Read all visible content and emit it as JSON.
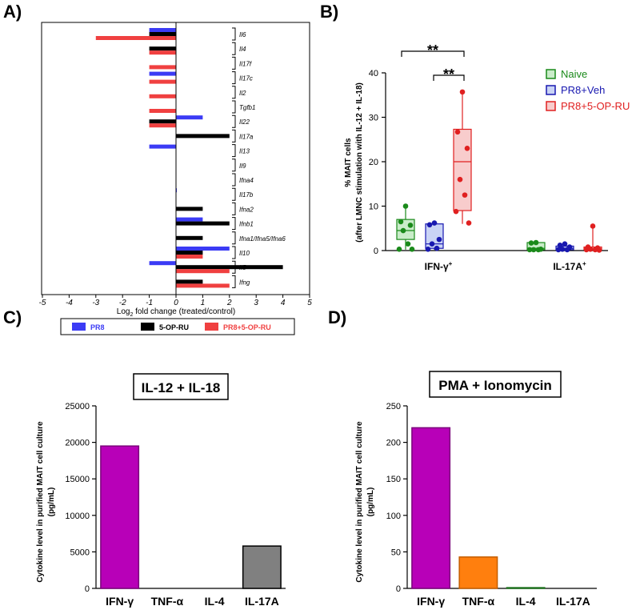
{
  "panels": {
    "a": "A)",
    "b": "B)",
    "c": "C)",
    "d": "D)"
  },
  "colors": {
    "pr8": "#3b3bf5",
    "op": "#000000",
    "pr8op": "#f04040",
    "naive": "#1a8a1a",
    "veh": "#1818b0",
    "combo": "#e02020",
    "magenta": "#b800b8",
    "orange": "#ff7f0e",
    "gray": "#808080"
  },
  "chart_data": [
    {
      "id": "A",
      "type": "bar",
      "orientation": "horizontal",
      "xlabel_prefix": "Log",
      "xlabel_sub": "2",
      "xlabel_suffix": " fold change (treated/control)",
      "xlim": [
        -5,
        5
      ],
      "xticks": [
        "-5",
        "-4",
        "-3",
        "-2",
        "-1",
        "0",
        "1",
        "2",
        "3",
        "4",
        "5"
      ],
      "series_names": [
        "PR8",
        "5-OP-RU",
        "PR8+5-OP-RU"
      ],
      "genes": [
        "Il6",
        "Il4",
        "Il17f",
        "Il17c",
        "Il2",
        "Tgfb1",
        "Il22",
        "Il17a",
        "Il13",
        "Il9",
        "Ifna4",
        "Il17b",
        "Ifna2",
        "Ifnb1",
        "Ifna1/Ifna5/Ifna6",
        "Il10",
        "Il5",
        "Ifng"
      ],
      "rows": [
        {
          "gene": "Il6",
          "values": [
            -1,
            -1,
            -3
          ]
        },
        {
          "gene": "Il4",
          "values": [
            0,
            -1,
            -1
          ]
        },
        {
          "gene": "Il17f",
          "values": [
            0,
            0,
            -1
          ]
        },
        {
          "gene": "Il17c",
          "values": [
            -1,
            0,
            -1
          ]
        },
        {
          "gene": "Il2",
          "values": [
            0,
            0,
            -1
          ]
        },
        {
          "gene": "Tgfb1",
          "values": [
            0,
            0,
            -1
          ]
        },
        {
          "gene": "Il22",
          "values": [
            1,
            -1,
            -1
          ]
        },
        {
          "gene": "Il17a",
          "values": [
            0,
            2,
            0
          ]
        },
        {
          "gene": "Il13",
          "values": [
            -1,
            0,
            0
          ]
        },
        {
          "gene": "Il9",
          "values": [
            0,
            0,
            0
          ]
        },
        {
          "gene": "Ifna4",
          "values": [
            0,
            0,
            0
          ]
        },
        {
          "gene": "Il17b",
          "values": [
            0.02,
            0,
            0
          ]
        },
        {
          "gene": "Ifna2",
          "values": [
            0,
            1,
            0
          ]
        },
        {
          "gene": "Ifnb1",
          "values": [
            1,
            2,
            0
          ]
        },
        {
          "gene": "Ifna1/Ifna5/Ifna6",
          "values": [
            0,
            1,
            0
          ]
        },
        {
          "gene": "Il10",
          "values": [
            2,
            1,
            1
          ]
        },
        {
          "gene": "Il5",
          "values": [
            -1,
            4,
            2
          ]
        },
        {
          "gene": "Ifng",
          "values": [
            0,
            1,
            2
          ]
        }
      ]
    },
    {
      "id": "B",
      "type": "scatter",
      "ylabel_1": "% MAIT cells",
      "ylabel_2": "(after LMNC stimulation with IL-12 + IL-18)",
      "ylim": [
        0,
        40
      ],
      "yticks": [
        "0",
        "10",
        "20",
        "30",
        "40"
      ],
      "groups": [
        {
          "label": "IFN-γ",
          "sup": "+"
        },
        {
          "label": "IL-17A",
          "sup": "+"
        }
      ],
      "legend": [
        "Naive",
        "PR8+Veh",
        "PR8+5-OP-RU"
      ],
      "significance": [
        "**",
        "**"
      ],
      "series": [
        {
          "name": "Naive",
          "group": 0,
          "points": [
            10,
            6.5,
            5.7,
            4.5,
            1.5,
            0.3,
            0.3
          ],
          "box": [
            0.2,
            2.5,
            4.5,
            7,
            10
          ]
        },
        {
          "name": "PR8+Veh",
          "group": 0,
          "points": [
            6.2,
            5.8,
            2.5,
            1.5,
            0.5,
            0.3
          ],
          "box": [
            0.2,
            0.5,
            1.5,
            6.0,
            6.2
          ]
        },
        {
          "name": "PR8+5-OP-RU",
          "group": 0,
          "points": [
            35.7,
            26.7,
            23,
            16,
            12.5,
            8.8,
            6.2
          ],
          "box": [
            6,
            9,
            20,
            27.3,
            35.8
          ]
        },
        {
          "name": "Naive",
          "group": 1,
          "points": [
            1.8,
            1.7,
            0.3,
            0.2,
            0.2,
            0.2
          ],
          "box": [
            0.1,
            0.2,
            0.5,
            1.8,
            2.0
          ]
        },
        {
          "name": "PR8+Veh",
          "group": 1,
          "points": [
            1.5,
            1.2,
            0.8,
            0.3,
            0.2,
            0.2
          ],
          "box": [
            0.1,
            0.2,
            0.5,
            1.0,
            1.5
          ]
        },
        {
          "name": "PR8+5-OP-RU",
          "group": 1,
          "points": [
            5.5,
            0.8,
            0.6,
            0.3,
            0.2,
            0.2,
            0.1
          ],
          "box": [
            0.1,
            0.2,
            0.4,
            0.8,
            5.5
          ]
        }
      ]
    },
    {
      "id": "C",
      "type": "bar",
      "title": "IL-12 + IL-18",
      "ylabel_1": "Cytokine level in purified MAIT cell culture",
      "ylabel_2": "(pg/mL)",
      "ylim": [
        0,
        25000
      ],
      "yticks": [
        "0",
        "5000",
        "10000",
        "15000",
        "20000",
        "25000"
      ],
      "categories": [
        "IFN-γ",
        "TNF-α",
        "IL-4",
        "IL-17A"
      ],
      "values": [
        19500,
        0,
        0,
        5800
      ]
    },
    {
      "id": "D",
      "type": "bar",
      "title": "PMA + Ionomycin",
      "ylabel_1": "Cytokine level in purified MAIT cell culture",
      "ylabel_2": "(pg/mL)",
      "ylim": [
        0,
        250
      ],
      "yticks": [
        "0",
        "50",
        "100",
        "150",
        "200",
        "250"
      ],
      "categories": [
        "IFN-γ",
        "TNF-α",
        "IL-4",
        "IL-17A"
      ],
      "values": [
        220,
        43,
        1,
        0
      ]
    }
  ]
}
